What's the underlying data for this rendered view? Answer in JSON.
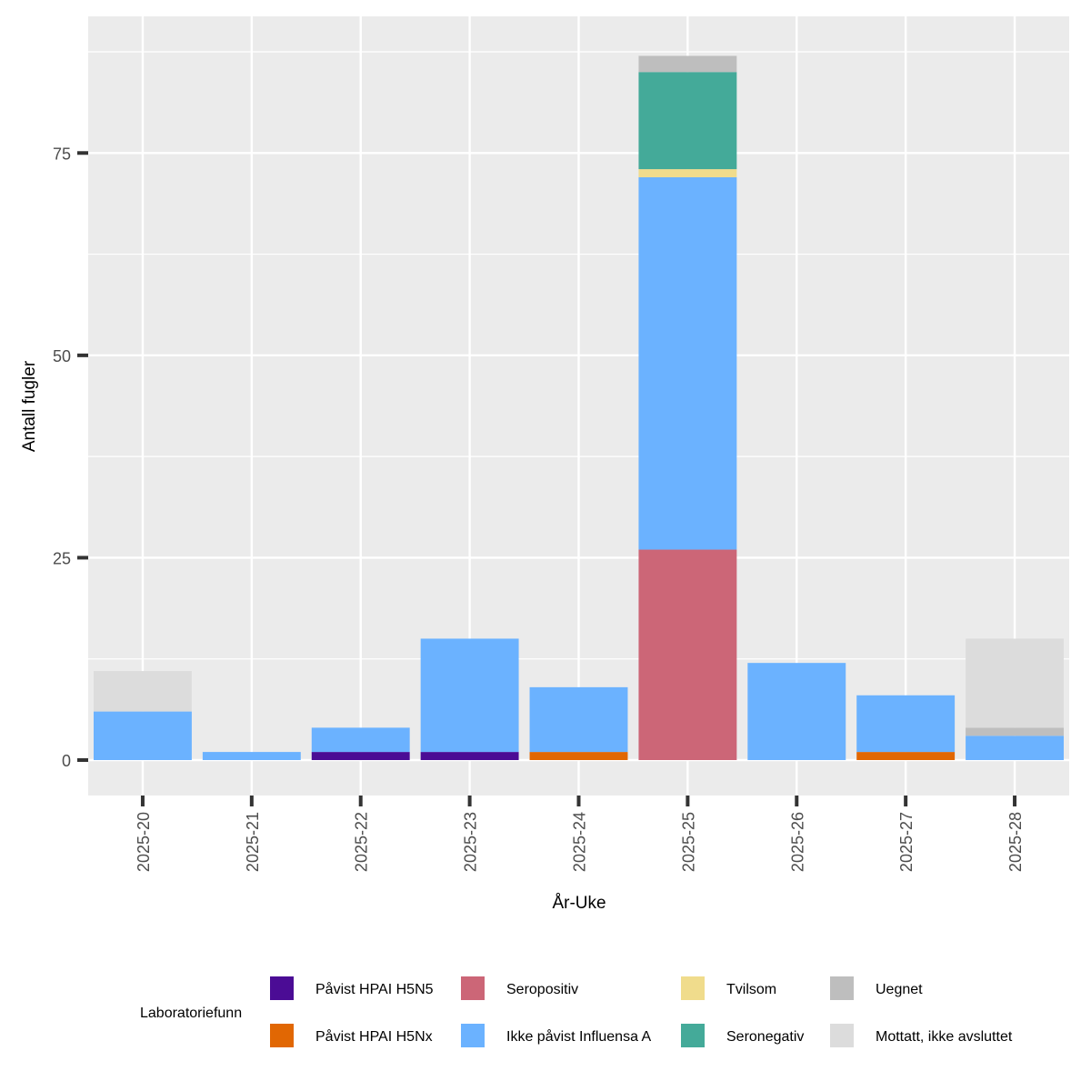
{
  "chart_data": {
    "type": "bar",
    "stacked": true,
    "xlabel": "År-Uke",
    "ylabel": "Antall fugler",
    "ylim": [
      -6,
      92
    ],
    "y_ticks": [
      0,
      25,
      50,
      75
    ],
    "grid": true,
    "legend_position": "bottom",
    "legend_title": "Laboratoriefunn",
    "categories": [
      "2025-20",
      "2025-21",
      "2025-22",
      "2025-23",
      "2025-24",
      "2025-25",
      "2025-26",
      "2025-27",
      "2025-28"
    ],
    "series": [
      {
        "name": "Påvist HPAI H5N5",
        "color": "#4B0C95",
        "values": [
          0,
          0,
          1,
          1,
          0,
          0,
          0,
          0,
          0
        ]
      },
      {
        "name": "Påvist HPAI H5Nx",
        "color": "#E16703",
        "values": [
          0,
          0,
          0,
          0,
          1,
          0,
          0,
          1,
          0
        ]
      },
      {
        "name": "Seropositiv",
        "color": "#CC6677",
        "values": [
          0,
          0,
          0,
          0,
          0,
          26,
          0,
          0,
          0
        ]
      },
      {
        "name": "Ikke påvist Influensa A",
        "color": "#6BB2FF",
        "values": [
          6,
          1,
          3,
          14,
          8,
          46,
          12,
          7,
          3
        ]
      },
      {
        "name": "Tvilsom",
        "color": "#F0DC8C",
        "values": [
          0,
          0,
          0,
          0,
          0,
          1,
          0,
          0,
          0
        ]
      },
      {
        "name": "Seronegativ",
        "color": "#44AA99",
        "values": [
          0,
          0,
          0,
          0,
          0,
          12,
          0,
          0,
          0
        ]
      },
      {
        "name": "Uegnet",
        "color": "#BEBEBE",
        "values": [
          0,
          0,
          0,
          0,
          0,
          2,
          0,
          0,
          1
        ]
      },
      {
        "name": "Mottatt, ikke avsluttet",
        "color": "#DCDCDC",
        "values": [
          5,
          0,
          0,
          0,
          0,
          0,
          0,
          0,
          11
        ]
      }
    ]
  }
}
